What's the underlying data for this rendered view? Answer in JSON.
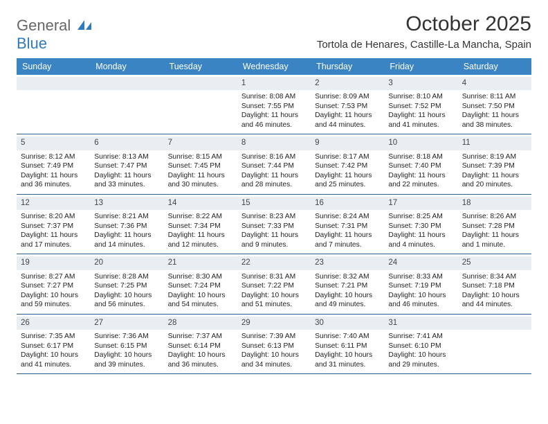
{
  "logo": {
    "word1": "General",
    "word2": "Blue"
  },
  "title": "October 2025",
  "location": "Tortola de Henares, Castille-La Mancha, Spain",
  "colors": {
    "header_bg": "#3b84c4",
    "header_text": "#ffffff",
    "daynum_bg": "#e9eef2",
    "border": "#2a5e8a",
    "logo_gray": "#666666",
    "logo_blue": "#2f7bbf",
    "sail_fill": "#2f7bbf"
  },
  "weekdays": [
    "Sunday",
    "Monday",
    "Tuesday",
    "Wednesday",
    "Thursday",
    "Friday",
    "Saturday"
  ],
  "weeks": [
    [
      {
        "n": "",
        "sr": "",
        "ss": "",
        "dl": ""
      },
      {
        "n": "",
        "sr": "",
        "ss": "",
        "dl": ""
      },
      {
        "n": "",
        "sr": "",
        "ss": "",
        "dl": ""
      },
      {
        "n": "1",
        "sr": "Sunrise: 8:08 AM",
        "ss": "Sunset: 7:55 PM",
        "dl": "Daylight: 11 hours and 46 minutes."
      },
      {
        "n": "2",
        "sr": "Sunrise: 8:09 AM",
        "ss": "Sunset: 7:53 PM",
        "dl": "Daylight: 11 hours and 44 minutes."
      },
      {
        "n": "3",
        "sr": "Sunrise: 8:10 AM",
        "ss": "Sunset: 7:52 PM",
        "dl": "Daylight: 11 hours and 41 minutes."
      },
      {
        "n": "4",
        "sr": "Sunrise: 8:11 AM",
        "ss": "Sunset: 7:50 PM",
        "dl": "Daylight: 11 hours and 38 minutes."
      }
    ],
    [
      {
        "n": "5",
        "sr": "Sunrise: 8:12 AM",
        "ss": "Sunset: 7:49 PM",
        "dl": "Daylight: 11 hours and 36 minutes."
      },
      {
        "n": "6",
        "sr": "Sunrise: 8:13 AM",
        "ss": "Sunset: 7:47 PM",
        "dl": "Daylight: 11 hours and 33 minutes."
      },
      {
        "n": "7",
        "sr": "Sunrise: 8:15 AM",
        "ss": "Sunset: 7:45 PM",
        "dl": "Daylight: 11 hours and 30 minutes."
      },
      {
        "n": "8",
        "sr": "Sunrise: 8:16 AM",
        "ss": "Sunset: 7:44 PM",
        "dl": "Daylight: 11 hours and 28 minutes."
      },
      {
        "n": "9",
        "sr": "Sunrise: 8:17 AM",
        "ss": "Sunset: 7:42 PM",
        "dl": "Daylight: 11 hours and 25 minutes."
      },
      {
        "n": "10",
        "sr": "Sunrise: 8:18 AM",
        "ss": "Sunset: 7:40 PM",
        "dl": "Daylight: 11 hours and 22 minutes."
      },
      {
        "n": "11",
        "sr": "Sunrise: 8:19 AM",
        "ss": "Sunset: 7:39 PM",
        "dl": "Daylight: 11 hours and 20 minutes."
      }
    ],
    [
      {
        "n": "12",
        "sr": "Sunrise: 8:20 AM",
        "ss": "Sunset: 7:37 PM",
        "dl": "Daylight: 11 hours and 17 minutes."
      },
      {
        "n": "13",
        "sr": "Sunrise: 8:21 AM",
        "ss": "Sunset: 7:36 PM",
        "dl": "Daylight: 11 hours and 14 minutes."
      },
      {
        "n": "14",
        "sr": "Sunrise: 8:22 AM",
        "ss": "Sunset: 7:34 PM",
        "dl": "Daylight: 11 hours and 12 minutes."
      },
      {
        "n": "15",
        "sr": "Sunrise: 8:23 AM",
        "ss": "Sunset: 7:33 PM",
        "dl": "Daylight: 11 hours and 9 minutes."
      },
      {
        "n": "16",
        "sr": "Sunrise: 8:24 AM",
        "ss": "Sunset: 7:31 PM",
        "dl": "Daylight: 11 hours and 7 minutes."
      },
      {
        "n": "17",
        "sr": "Sunrise: 8:25 AM",
        "ss": "Sunset: 7:30 PM",
        "dl": "Daylight: 11 hours and 4 minutes."
      },
      {
        "n": "18",
        "sr": "Sunrise: 8:26 AM",
        "ss": "Sunset: 7:28 PM",
        "dl": "Daylight: 11 hours and 1 minute."
      }
    ],
    [
      {
        "n": "19",
        "sr": "Sunrise: 8:27 AM",
        "ss": "Sunset: 7:27 PM",
        "dl": "Daylight: 10 hours and 59 minutes."
      },
      {
        "n": "20",
        "sr": "Sunrise: 8:28 AM",
        "ss": "Sunset: 7:25 PM",
        "dl": "Daylight: 10 hours and 56 minutes."
      },
      {
        "n": "21",
        "sr": "Sunrise: 8:30 AM",
        "ss": "Sunset: 7:24 PM",
        "dl": "Daylight: 10 hours and 54 minutes."
      },
      {
        "n": "22",
        "sr": "Sunrise: 8:31 AM",
        "ss": "Sunset: 7:22 PM",
        "dl": "Daylight: 10 hours and 51 minutes."
      },
      {
        "n": "23",
        "sr": "Sunrise: 8:32 AM",
        "ss": "Sunset: 7:21 PM",
        "dl": "Daylight: 10 hours and 49 minutes."
      },
      {
        "n": "24",
        "sr": "Sunrise: 8:33 AM",
        "ss": "Sunset: 7:19 PM",
        "dl": "Daylight: 10 hours and 46 minutes."
      },
      {
        "n": "25",
        "sr": "Sunrise: 8:34 AM",
        "ss": "Sunset: 7:18 PM",
        "dl": "Daylight: 10 hours and 44 minutes."
      }
    ],
    [
      {
        "n": "26",
        "sr": "Sunrise: 7:35 AM",
        "ss": "Sunset: 6:17 PM",
        "dl": "Daylight: 10 hours and 41 minutes."
      },
      {
        "n": "27",
        "sr": "Sunrise: 7:36 AM",
        "ss": "Sunset: 6:15 PM",
        "dl": "Daylight: 10 hours and 39 minutes."
      },
      {
        "n": "28",
        "sr": "Sunrise: 7:37 AM",
        "ss": "Sunset: 6:14 PM",
        "dl": "Daylight: 10 hours and 36 minutes."
      },
      {
        "n": "29",
        "sr": "Sunrise: 7:39 AM",
        "ss": "Sunset: 6:13 PM",
        "dl": "Daylight: 10 hours and 34 minutes."
      },
      {
        "n": "30",
        "sr": "Sunrise: 7:40 AM",
        "ss": "Sunset: 6:11 PM",
        "dl": "Daylight: 10 hours and 31 minutes."
      },
      {
        "n": "31",
        "sr": "Sunrise: 7:41 AM",
        "ss": "Sunset: 6:10 PM",
        "dl": "Daylight: 10 hours and 29 minutes."
      },
      {
        "n": "",
        "sr": "",
        "ss": "",
        "dl": ""
      }
    ]
  ]
}
